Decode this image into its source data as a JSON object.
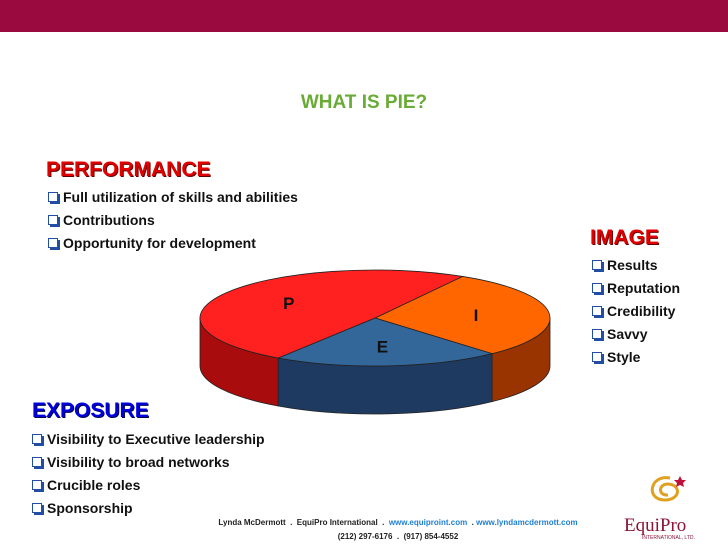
{
  "title": "WHAT IS PIE?",
  "performance": {
    "heading": "PERFORMANCE",
    "items": [
      "Full utilization of skills and abilities",
      "Contributions",
      "Opportunity for development"
    ]
  },
  "image": {
    "heading": "IMAGE",
    "items": [
      "Results",
      "Reputation",
      "Credibility",
      "Savvy",
      "Style"
    ]
  },
  "exposure": {
    "heading": "EXPOSURE",
    "items": [
      "Visibility to Executive leadership",
      "Visibility to broad networks",
      "Crucible roles",
      "Sponsorship"
    ]
  },
  "chart_data": {
    "type": "pie",
    "categories": [
      "I",
      "E",
      "P"
    ],
    "values": [
      30,
      21,
      49
    ],
    "colors": [
      "#ff6600",
      "#336699",
      "#ff2020"
    ],
    "side_colors": [
      "#993300",
      "#1f3a60",
      "#a80c0c"
    ]
  },
  "footer": {
    "line1": [
      "Lynda McDermott",
      "EquiPro International",
      "www.equiproint.com",
      "www.lyndamcdermott.com"
    ],
    "line2": [
      "(212) 297-6176",
      "(917) 854-4552"
    ]
  },
  "logo": {
    "name": "EquiPro",
    "sub": "INTERNATIONAL, LTD."
  }
}
